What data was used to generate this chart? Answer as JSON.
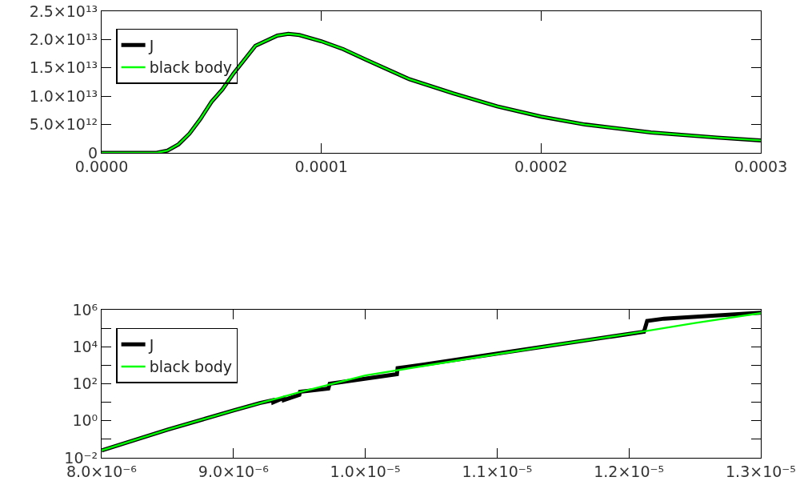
{
  "chart_data": [
    {
      "type": "line",
      "legend": "top left",
      "grid": false,
      "marker": "none",
      "line_style": "solid",
      "xlim": [
        0,
        0.0003
      ],
      "xticks": [
        {
          "value": 0,
          "label": "0.0000"
        },
        {
          "value": 0.0001,
          "label": "0.0001"
        },
        {
          "value": 0.0002,
          "label": "0.0002"
        },
        {
          "value": 0.0003,
          "label": "0.0003"
        }
      ],
      "ylim": [
        0,
        25000000000000.0
      ],
      "yticks": [
        0,
        {
          "value": 5000000000000.0,
          "label": "5.0×10¹²"
        },
        {
          "value": 10000000000000.0,
          "label": "1.0×10¹³"
        },
        {
          "value": 15000000000000.0,
          "label": "1.5×10¹³"
        },
        {
          "value": 20000000000000.0,
          "label": "2.0×10¹³"
        },
        {
          "value": 25000000000000.0,
          "label": "2.5×10¹³"
        }
      ],
      "x": [
        0,
        2e-05,
        2.5e-05,
        3e-05,
        3.5e-05,
        4e-05,
        4.5e-05,
        5e-05,
        5.5e-05,
        6e-05,
        7e-05,
        8e-05,
        8.5e-05,
        9e-05,
        0.0001,
        0.00011,
        0.00012,
        0.00014,
        0.00016,
        0.00018,
        0.0002,
        0.00022,
        0.00025,
        0.00028,
        0.0003
      ],
      "series": [
        {
          "name": "J",
          "color": "#000000",
          "values": [
            0,
            0,
            0,
            400000000000.0,
            1500000000000.0,
            3400000000000.0,
            6000000000000.0,
            9000000000000.0,
            11200000000000.0,
            14000000000000.0,
            18900000000000.0,
            20700000000000.0,
            21000000000000.0,
            20800000000000.0,
            19700000000000.0,
            18300000000000.0,
            16500000000000.0,
            13000000000000.0,
            10500000000000.0,
            8200000000000.0,
            6400000000000.0,
            5000000000000.0,
            3600000000000.0,
            2700000000000.0,
            2200000000000.0
          ]
        },
        {
          "name": "black body",
          "color": "#00ff00",
          "values": [
            0,
            0,
            0,
            400000000000.0,
            1500000000000.0,
            3400000000000.0,
            6000000000000.0,
            9000000000000.0,
            11200000000000.0,
            14000000000000.0,
            18900000000000.0,
            20700000000000.0,
            21000000000000.0,
            20800000000000.0,
            19700000000000.0,
            18300000000000.0,
            16500000000000.0,
            13000000000000.0,
            10500000000000.0,
            8200000000000.0,
            6400000000000.0,
            5000000000000.0,
            3600000000000.0,
            2700000000000.0,
            2200000000000.0
          ]
        }
      ]
    },
    {
      "type": "line",
      "legend": "top left",
      "grid": false,
      "marker": "none",
      "line_style": "solid",
      "log": "y",
      "xlim": [
        8e-06,
        1.3e-05
      ],
      "xticks": [
        {
          "value": 8e-06,
          "label": "8.0×10⁻⁶"
        },
        {
          "value": 9e-06,
          "label": "9.0×10⁻⁶"
        },
        {
          "value": 1e-05,
          "label": "1.0×10⁻⁵"
        },
        {
          "value": 1.1e-05,
          "label": "1.1×10⁻⁵"
        },
        {
          "value": 1.2e-05,
          "label": "1.2×10⁻⁵"
        },
        {
          "value": 1.3e-05,
          "label": "1.3×10⁻⁵"
        }
      ],
      "ylim": [
        0.01,
        1000000
      ],
      "yticks": [
        {
          "value": 0.01,
          "label": "10⁻²"
        },
        {
          "value": 0.1,
          "label": null
        },
        {
          "value": 1,
          "label": "10⁰"
        },
        {
          "value": 10,
          "label": null
        },
        {
          "value": 100,
          "label": "10²"
        },
        {
          "value": 1000,
          "label": null
        },
        {
          "value": 10000,
          "label": "10⁴"
        },
        {
          "value": 100000,
          "label": null
        },
        {
          "value": 1000000,
          "label": "10⁶"
        }
      ],
      "series": [
        {
          "name": "J",
          "color": "#000000",
          "x": [
            8e-06,
            8.5e-06,
            9e-06,
            9.2e-06,
            9.3e-06,
            9.302e-06,
            9.38e-06,
            9.382e-06,
            9.5e-06,
            9.505e-06,
            9.72e-06,
            9.73e-06,
            1.024e-05,
            1.0245e-05,
            1.0445e-05,
            1.2114e-05,
            1.2138e-05,
            1.2266e-05,
            1.3e-05
          ],
          "values": [
            0.025,
            0.33,
            3.6,
            9,
            13,
            10,
            17,
            13,
            25,
            37,
            55,
            100,
            330,
            700,
            1100,
            65000,
            250000,
            330000,
            680000
          ]
        },
        {
          "name": "black body",
          "color": "#00ff00",
          "x": [
            8e-06,
            8.5e-06,
            9e-06,
            9.5e-06,
            1e-05,
            1.05e-05,
            1.1e-05,
            1.15e-05,
            1.2e-05,
            1.25e-05,
            1.3e-05
          ],
          "values": [
            0.025,
            0.33,
            3.6,
            35,
            280,
            1070,
            4000,
            14500,
            50000,
            190000,
            660000
          ]
        }
      ]
    }
  ]
}
